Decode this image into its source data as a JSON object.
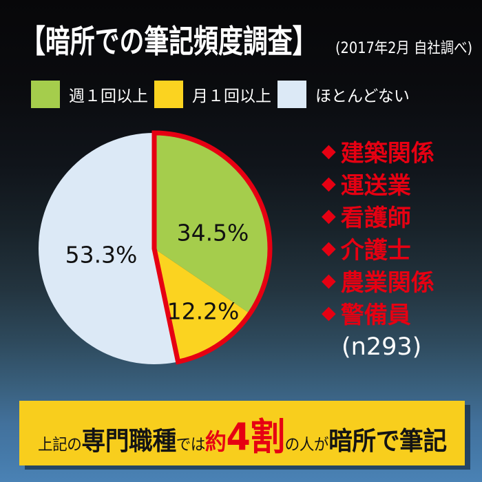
{
  "theme": {
    "red": "#e60012",
    "banner_yellow": "#f8ce1d",
    "text_white": "#ffffff",
    "background_top": "#070709",
    "background_bottom": "#4a82b5"
  },
  "header": {
    "title": "【暗所での筆記頻度調査】",
    "subtitle": "(2017年2月 自社調べ)"
  },
  "legend": {
    "items": [
      {
        "label": "週１回以上",
        "color": "#a5cd4c"
      },
      {
        "label": "月１回以上",
        "color": "#fbd320"
      },
      {
        "label": "ほとんどない",
        "color": "#dce9f6"
      }
    ]
  },
  "chart_data": {
    "type": "pie",
    "title": "暗所での筆記頻度調査",
    "source_note": "2017年2月 自社調べ",
    "categories": [
      "週１回以上",
      "月１回以上",
      "ほとんどない"
    ],
    "values": [
      34.5,
      12.2,
      53.3
    ],
    "labels": [
      "34.5%",
      "12.2%",
      "53.3%"
    ],
    "colors": [
      "#a5cd4c",
      "#fbd320",
      "#dce9f6"
    ],
    "start_angle_deg": 0,
    "direction": "clockwise",
    "highlight": {
      "slice_indices": [
        0,
        1
      ],
      "outline_color": "#e60012",
      "outline_width": 7
    },
    "legend_position": "top",
    "sample_size_label": "(n293)"
  },
  "occupations": {
    "bullet": "◆",
    "items": [
      "建築関係",
      "運送業",
      "看護師",
      "介護士",
      "農業関係",
      "警備員"
    ],
    "sample_size": "(n293)"
  },
  "banner": {
    "segments": [
      {
        "text": "上記の"
      },
      {
        "text": "専門職種"
      },
      {
        "text": "では"
      },
      {
        "text": "約"
      },
      {
        "text": "4割"
      },
      {
        "text": "の人が"
      },
      {
        "text": "暗所で筆記"
      }
    ]
  }
}
